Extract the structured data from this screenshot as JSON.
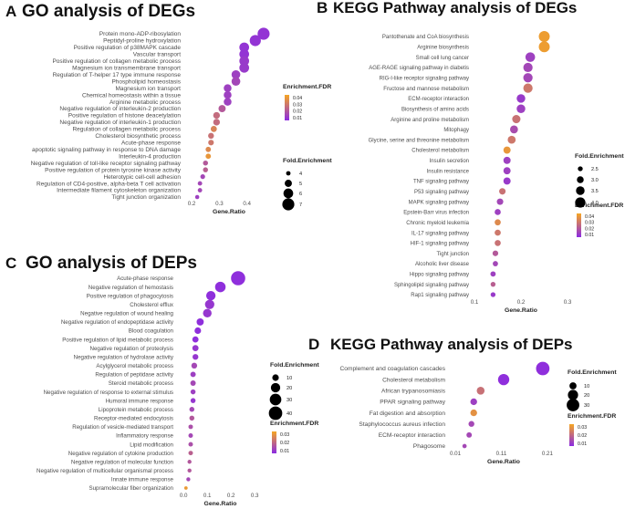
{
  "chart_data": [
    {
      "type": "scatter",
      "panel_label": "A",
      "title": "GO analysis of DEGs",
      "xlabel": "Gene.Ratio",
      "xlim": [
        0.18,
        0.49
      ],
      "xticks": [
        "0.2",
        "0.3",
        "0.4"
      ],
      "xtick_values": [
        0.2,
        0.3,
        0.4
      ],
      "legend_size_title": "Fold.Enrichment",
      "legend_size_values": [
        "4",
        "5",
        "6",
        "7"
      ],
      "legend_color_title": "Enrichment.FDR",
      "legend_color_ticks": [
        "0.04",
        "0.03",
        "0.02",
        "0.01"
      ],
      "color_low": "#8b2be2",
      "color_high": "#f5a623",
      "fdr_range": [
        0.005,
        0.045
      ],
      "fold_range": [
        3.5,
        7.5
      ],
      "categories": [
        "Protein mono-ADP-ribosylation",
        "Peptidyl-proline hydroxylation",
        "Positive regulation of p38MAPK cascade",
        "Vascular transport",
        "Positive regulation of collagen metabolic process",
        "Magnesium ion transmembrane transport",
        "Regulation of T-helper 17 type immune response",
        "Phospholipid homeostasis",
        "Magnesium ion transport",
        "Chemical homeostasis within a tissue",
        "Arginine metabolic process",
        "Negative regulation of interleukin-2 production",
        "Positive regulation of histone deacetylation",
        "Negative regulation of interleukin-1 production",
        "Regulation of collagen metabolic process",
        "Cholesterol biosynthetic process",
        "Acute-phase response",
        "apoptotic signaling pathway in response to DNA damage",
        "Interleukin-4 production",
        "Negative regulation of toll-like receptor signaling pathway",
        "Positive regulation of protein tyrosine kinase activity",
        "Heterotypic cell-cell adhesion",
        "Regulation of CD4-positive, alpha-beta T cell activation",
        "Intermediate filament cytoskeleton organization",
        "Tight junction organization"
      ],
      "x": [
        0.46,
        0.43,
        0.39,
        0.39,
        0.39,
        0.39,
        0.36,
        0.36,
        0.33,
        0.33,
        0.33,
        0.31,
        0.29,
        0.29,
        0.28,
        0.27,
        0.27,
        0.26,
        0.26,
        0.25,
        0.25,
        0.24,
        0.23,
        0.23,
        0.22
      ],
      "fold": [
        7,
        6.6,
        6,
        6,
        6,
        6,
        5.6,
        5.6,
        5.2,
        5.2,
        5.2,
        5,
        4.8,
        4.8,
        4.6,
        4.5,
        4.4,
        4.3,
        4.3,
        4.2,
        4.2,
        4.1,
        4,
        4,
        3.9
      ],
      "fdr": [
        0.008,
        0.008,
        0.008,
        0.008,
        0.01,
        0.01,
        0.012,
        0.014,
        0.012,
        0.012,
        0.012,
        0.02,
        0.026,
        0.026,
        0.034,
        0.028,
        0.03,
        0.036,
        0.04,
        0.02,
        0.022,
        0.014,
        0.014,
        0.014,
        0.012
      ]
    },
    {
      "type": "scatter",
      "panel_label": "B",
      "title": "KEGG Pathway analysis of DEGs",
      "xlabel": "Gene.Ratio",
      "xlim": [
        0.1,
        0.3
      ],
      "xticks": [
        "0.1",
        "0.2",
        "0.3"
      ],
      "xtick_values": [
        0.1,
        0.2,
        0.3
      ],
      "legend_size_title": "Fold.Enrichment",
      "legend_size_values": [
        "2.5",
        "3.0",
        "3.5",
        "4.0"
      ],
      "legend_color_title": "Enrichment.FDR",
      "legend_color_ticks": [
        "0.04",
        "0.03",
        "0.02",
        "0.01"
      ],
      "color_low": "#8b2be2",
      "color_high": "#f5a623",
      "fdr_range": [
        0.005,
        0.045
      ],
      "fold_range": [
        2.0,
        4.5
      ],
      "categories": [
        "Pantothenate and CoA biosynthesis",
        "Arginine biosynthesis",
        "Small cell lung cancer",
        "AGE-RAGE signaling pathway in diabetis",
        "RIG-I-like receptor signaling pathway",
        "Fructose and mannose metabolism",
        "ECM-receptor interaction",
        "Biosynthesis of amino acids",
        "Arginine and proline metabolism",
        "Mitophagy",
        "Glycine, serine and threonine metabolism",
        "Cholesterol metabolism",
        "Insulin secretion",
        "Insulin resistance",
        "TNF signaling pathway",
        "P53 signaling pathway",
        "MAPK signaling pathway",
        "Epstein-Barr virus infection",
        "Chronic myeloid leukemia",
        "IL-17 signaling pathway",
        "HIF-1 signaling pathway",
        "Tight junction",
        "Alcoholic liver disease",
        "Hippo signaling pathway",
        "Sphingolipid signaling pathway",
        "Rap1 signaling pathway"
      ],
      "x": [
        0.25,
        0.25,
        0.22,
        0.215,
        0.215,
        0.215,
        0.2,
        0.2,
        0.19,
        0.185,
        0.18,
        0.17,
        0.17,
        0.17,
        0.17,
        0.16,
        0.155,
        0.15,
        0.15,
        0.15,
        0.15,
        0.145,
        0.145,
        0.14,
        0.14,
        0.14
      ],
      "fold": [
        4.2,
        4.2,
        3.8,
        3.7,
        3.7,
        3.7,
        3.5,
        3.5,
        3.4,
        3.3,
        3.3,
        3.1,
        3.1,
        3.1,
        3.1,
        2.9,
        2.9,
        2.8,
        2.8,
        2.8,
        2.8,
        2.7,
        2.6,
        2.6,
        2.5,
        2.5
      ],
      "fdr": [
        0.042,
        0.042,
        0.012,
        0.014,
        0.014,
        0.03,
        0.01,
        0.012,
        0.028,
        0.016,
        0.03,
        0.04,
        0.012,
        0.012,
        0.01,
        0.028,
        0.014,
        0.012,
        0.036,
        0.03,
        0.028,
        0.02,
        0.014,
        0.012,
        0.022,
        0.01
      ]
    },
    {
      "type": "scatter",
      "panel_label": "C",
      "title": "GO analysis of DEPs",
      "xlabel": "Gene.Ratio",
      "xlim": [
        -0.02,
        0.33
      ],
      "xticks": [
        "0.0",
        "0.1",
        "0.2",
        "0.3"
      ],
      "xtick_values": [
        0,
        0.1,
        0.2,
        0.3
      ],
      "legend_size_title": "Fold.Enrichment",
      "legend_size_values": [
        "10",
        "20",
        "30",
        "40"
      ],
      "legend_color_title": "Enrichment.FDR",
      "legend_color_ticks": [
        "0.03",
        "0.02",
        "0.01"
      ],
      "color_low": "#8b2be2",
      "color_high": "#f5a623",
      "fdr_range": [
        0.005,
        0.035
      ],
      "fold_range": [
        2,
        45
      ],
      "categories": [
        "Acute-phase response",
        "Negative regulation of hemostasis",
        "Positive regulation of phagocytosis",
        "Cholesterol efflux",
        "Negative regulation of wound healing",
        "Negative regulation of endopeptidase activity",
        "Blood coagulation",
        "Positive regulation of lipid metabolic process",
        "Negative regulation of proteolysis",
        "Negative regulation of hydrolase activity",
        "Acylglycerol metabolic process",
        "Regulation of peptidase activity",
        "Steroid metabolic process",
        "Negative regulation of response to external stimulus",
        "Humoral immune response",
        "Lipoprotein metabolic process",
        "Receptor-mediated endocytosis",
        "Regulation of vesicle-mediated transport",
        "Inflammatory response",
        "Lipid modification",
        "Negative regulation of cytokine production",
        "Negative regulation of molecular function",
        "Negative regulation of multicellular organismal process",
        "Innate immune response",
        "Supramolecular fiber organization"
      ],
      "x": [
        0.23,
        0.155,
        0.115,
        0.11,
        0.1,
        0.07,
        0.06,
        0.05,
        0.05,
        0.05,
        0.045,
        0.04,
        0.04,
        0.04,
        0.04,
        0.035,
        0.035,
        0.03,
        0.03,
        0.03,
        0.03,
        0.025,
        0.025,
        0.02,
        0.01
      ],
      "fold": [
        45,
        25,
        20,
        20,
        17,
        12,
        10,
        9,
        9,
        8,
        8,
        7,
        7,
        6,
        6,
        6,
        6,
        5,
        5,
        5,
        5,
        4,
        4,
        4,
        3
      ],
      "fdr": [
        0.006,
        0.006,
        0.006,
        0.008,
        0.008,
        0.006,
        0.006,
        0.006,
        0.008,
        0.008,
        0.012,
        0.01,
        0.012,
        0.01,
        0.008,
        0.012,
        0.016,
        0.014,
        0.012,
        0.014,
        0.018,
        0.016,
        0.016,
        0.012,
        0.032
      ]
    },
    {
      "type": "scatter",
      "panel_label": "D",
      "title": "KEGG Pathway analysis of DEPs",
      "xlabel": "Gene.Ratio",
      "xlim": [
        0.0,
        0.23
      ],
      "xticks": [
        "0.01",
        "0.11",
        "0.21"
      ],
      "xtick_values": [
        0.01,
        0.11,
        0.21
      ],
      "legend_size_title": "Fold.Enrichment",
      "legend_size_values": [
        "10",
        "20",
        "30"
      ],
      "legend_color_title": "Enrichment.FDR",
      "legend_color_ticks": [
        "0.03",
        "0.02",
        "0.01"
      ],
      "color_low": "#8b2be2",
      "color_high": "#f5a623",
      "fdr_range": [
        0.005,
        0.035
      ],
      "fold_range": [
        2,
        36
      ],
      "categories": [
        "Complement and coagulation cascades",
        "Cholesterol metabolism",
        "African trypanosomiasis",
        "PPAR signaling pathway",
        "Fat digestion and absorption",
        "Staphylococcus aureus infection",
        "ECM-receptor interaction",
        "Phagosome"
      ],
      "x": [
        0.2,
        0.115,
        0.065,
        0.05,
        0.05,
        0.045,
        0.04,
        0.03
      ],
      "fold": [
        34,
        24,
        12,
        9,
        9,
        7,
        6,
        4
      ],
      "fdr": [
        0.006,
        0.006,
        0.022,
        0.01,
        0.03,
        0.012,
        0.012,
        0.012
      ]
    }
  ]
}
